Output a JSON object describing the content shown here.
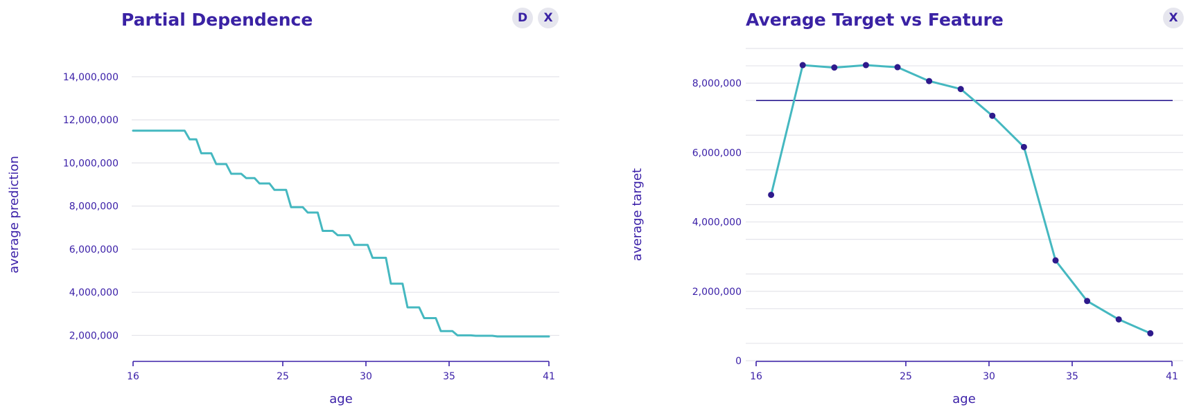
{
  "chart_data": [
    {
      "type": "line",
      "title": "Partial Dependence",
      "xlabel": "age",
      "ylabel": "average prediction",
      "xlim": [
        16,
        41
      ],
      "ylim": [
        600000,
        14800000
      ],
      "xticks": [
        16,
        25,
        30,
        35,
        41
      ],
      "xtick_labels": [
        "16",
        "25",
        "30",
        "35",
        "41"
      ],
      "yticks": [
        2000000,
        4000000,
        6000000,
        8000000,
        10000000,
        12000000,
        14000000
      ],
      "ytick_labels": [
        "2,000,000",
        "4,000,000",
        "6,000,000",
        "8,000,000",
        "10,000,000",
        "12,000,000",
        "14,000,000"
      ],
      "line_color": "#45b8c0",
      "series": [
        {
          "name": "partial dependence",
          "x": [
            16,
            19.1,
            19.4,
            19.8,
            20.1,
            20.7,
            21,
            21.6,
            21.9,
            22.5,
            22.8,
            23.3,
            23.6,
            24.2,
            24.5,
            25.2,
            25.5,
            26.2,
            26.5,
            27.1,
            27.4,
            28,
            28.3,
            29,
            29.3,
            30.1,
            30.4,
            31.2,
            31.5,
            32.2,
            32.5,
            33.2,
            33.5,
            34.2,
            34.5,
            35.2,
            35.5,
            36.3,
            36.6,
            37.6,
            37.9,
            41
          ],
          "y": [
            11500000,
            11500000,
            11100000,
            11100000,
            10450000,
            10450000,
            9950000,
            9950000,
            9500000,
            9500000,
            9300000,
            9300000,
            9050000,
            9050000,
            8750000,
            8750000,
            7950000,
            7950000,
            7700000,
            7700000,
            6850000,
            6850000,
            6650000,
            6650000,
            6200000,
            6200000,
            5600000,
            5600000,
            4400000,
            4400000,
            3300000,
            3300000,
            2800000,
            2800000,
            2200000,
            2200000,
            2000000,
            2000000,
            1980000,
            1980000,
            1950000,
            1950000
          ]
        }
      ]
    },
    {
      "type": "line",
      "title": "Average Target vs Feature",
      "xlabel": "age",
      "ylabel": "average target",
      "xlim": [
        16,
        41
      ],
      "ylim": [
        0,
        9000000
      ],
      "xticks": [
        16,
        25,
        30,
        35,
        41
      ],
      "xtick_labels": [
        "16",
        "25",
        "30",
        "35",
        "41"
      ],
      "yticks": [
        0,
        2000000,
        4000000,
        6000000,
        8000000
      ],
      "ytick_labels": [
        "0",
        "2,000,000",
        "4,000,000",
        "6,000,000",
        "8,000,000"
      ],
      "line_color": "#45b8c0",
      "point_color": "#2e1a8c",
      "reference_line": 7500000,
      "reference_color": "#2a1a90",
      "series": [
        {
          "name": "average target",
          "x": [
            16.9,
            18.8,
            20.7,
            22.6,
            24.5,
            26.4,
            28.3,
            30.2,
            32.1,
            34,
            35.9,
            37.8,
            39.7
          ],
          "y": [
            4780000,
            8520000,
            8450000,
            8520000,
            8460000,
            8060000,
            7830000,
            7060000,
            6160000,
            2890000,
            1720000,
            1190000,
            790000
          ]
        }
      ]
    }
  ],
  "buttons": {
    "download_label": "D",
    "close_label": "X",
    "close_label_right": "X"
  }
}
